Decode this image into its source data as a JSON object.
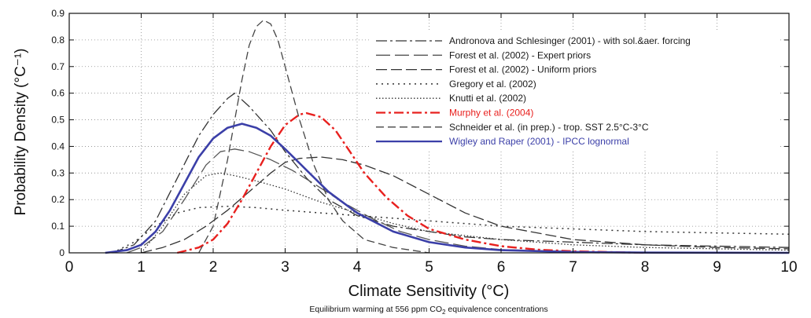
{
  "chart_data": {
    "type": "line",
    "xlabel": "Climate Sensitivity (°C)",
    "ylabel": "Probability Density (°C⁻¹)",
    "caption_main": "Equilibrium warming at 556 ppm CO",
    "caption_sub": "2",
    "caption_rest": " equivalence concentrations",
    "xlim": [
      0,
      10
    ],
    "ylim": [
      0,
      0.9
    ],
    "xticks": [
      "0",
      "1",
      "2",
      "3",
      "4",
      "5",
      "6",
      "7",
      "8",
      "9",
      "10"
    ],
    "yticks": [
      "0",
      "0.1",
      "0.2",
      "0.3",
      "0.4",
      "0.5",
      "0.6",
      "0.7",
      "0.8",
      "0.9"
    ],
    "grid": true,
    "legend_position": "top-right",
    "series": [
      {
        "name": "Andronova and Schlesinger (2001) - with sol.&aer. forcing",
        "color": "#333333",
        "dash": "14,4,3,4",
        "width": 1.3,
        "x": [
          0.6,
          0.9,
          1.2,
          1.5,
          1.8,
          2.0,
          2.2,
          2.3,
          2.5,
          2.8,
          3.0,
          3.3,
          3.6,
          4.0,
          4.5,
          5.0,
          5.5,
          6.0,
          7.0,
          8.0,
          9.0,
          10.0
        ],
        "y": [
          0.0,
          0.03,
          0.12,
          0.28,
          0.44,
          0.52,
          0.58,
          0.6,
          0.55,
          0.46,
          0.38,
          0.28,
          0.2,
          0.14,
          0.1,
          0.08,
          0.06,
          0.05,
          0.04,
          0.03,
          0.025,
          0.02
        ]
      },
      {
        "name": "Forest et al. (2002) - Expert priors",
        "color": "#555555",
        "dash": "18,6",
        "width": 1.3,
        "x": [
          0.8,
          1.0,
          1.3,
          1.6,
          1.9,
          2.1,
          2.3,
          2.5,
          2.8,
          3.1,
          3.4,
          3.8,
          4.2,
          4.6,
          5.0,
          5.5,
          6.0,
          7.0,
          8.0,
          10.0
        ],
        "y": [
          0.0,
          0.02,
          0.08,
          0.2,
          0.33,
          0.38,
          0.39,
          0.38,
          0.35,
          0.31,
          0.26,
          0.19,
          0.13,
          0.08,
          0.05,
          0.025,
          0.012,
          0.005,
          0.002,
          0.0
        ]
      },
      {
        "name": "Forest et al. (2002) - Uniform priors",
        "color": "#333333",
        "dash": "14,5",
        "width": 1.3,
        "x": [
          1.0,
          1.3,
          1.6,
          1.9,
          2.2,
          2.5,
          2.8,
          3.0,
          3.2,
          3.5,
          3.8,
          4.1,
          4.5,
          5.0,
          5.5,
          6.0,
          7.0,
          8.0,
          9.0,
          10.0
        ],
        "y": [
          0.0,
          0.02,
          0.05,
          0.1,
          0.16,
          0.23,
          0.3,
          0.34,
          0.355,
          0.36,
          0.35,
          0.33,
          0.29,
          0.22,
          0.15,
          0.1,
          0.05,
          0.03,
          0.02,
          0.015
        ]
      },
      {
        "name": "Gregory et al. (2002)",
        "color": "#333333",
        "dash": "2,5",
        "width": 1.5,
        "x": [
          0.6,
          0.9,
          1.2,
          1.5,
          1.8,
          2.2,
          2.6,
          3.0,
          3.5,
          4.0,
          4.5,
          5.0,
          6.0,
          7.0,
          8.0,
          9.0,
          10.0
        ],
        "y": [
          0.0,
          0.04,
          0.1,
          0.15,
          0.17,
          0.175,
          0.17,
          0.16,
          0.15,
          0.14,
          0.13,
          0.12,
          0.1,
          0.09,
          0.08,
          0.075,
          0.07
        ]
      },
      {
        "name": "Knutti et al. (2002)",
        "color": "#333333",
        "dash": "1.5,2.5",
        "width": 1.3,
        "x": [
          1.0,
          1.3,
          1.6,
          1.9,
          2.1,
          2.3,
          2.6,
          3.0,
          3.5,
          4.0,
          4.5,
          5.0,
          6.0,
          7.0,
          8.0,
          9.0,
          10.0
        ],
        "y": [
          0.0,
          0.1,
          0.22,
          0.29,
          0.3,
          0.29,
          0.27,
          0.24,
          0.19,
          0.15,
          0.11,
          0.08,
          0.05,
          0.03,
          0.02,
          0.015,
          0.01
        ]
      },
      {
        "name": "Murphy et al. (2004)",
        "color": "#e8201e",
        "dash": "12,4,3,4",
        "width": 2.4,
        "x": [
          1.5,
          1.8,
          2.0,
          2.2,
          2.4,
          2.6,
          2.8,
          3.0,
          3.2,
          3.3,
          3.5,
          3.7,
          3.9,
          4.1,
          4.4,
          4.7,
          5.0,
          5.5,
          6.0,
          6.5,
          7.0,
          7.5,
          8.0
        ],
        "y": [
          0.0,
          0.02,
          0.05,
          0.11,
          0.2,
          0.3,
          0.4,
          0.48,
          0.52,
          0.525,
          0.51,
          0.46,
          0.38,
          0.3,
          0.21,
          0.14,
          0.09,
          0.05,
          0.025,
          0.012,
          0.006,
          0.003,
          0.0
        ]
      },
      {
        "name": "Schneider et al. (in prep.) - trop. SST 2.5°C-3°C",
        "color": "#444444",
        "dash": "10,5",
        "width": 1.3,
        "x": [
          1.8,
          2.0,
          2.2,
          2.4,
          2.5,
          2.6,
          2.7,
          2.8,
          2.9,
          3.0,
          3.2,
          3.4,
          3.6,
          3.8,
          4.1,
          4.5,
          5.0
        ],
        "y": [
          0.0,
          0.1,
          0.35,
          0.65,
          0.78,
          0.85,
          0.875,
          0.86,
          0.8,
          0.7,
          0.5,
          0.33,
          0.2,
          0.12,
          0.05,
          0.02,
          0.0
        ]
      },
      {
        "name": "Wigley and Raper (2001) - IPCC lognormal",
        "color": "#3b3fa8",
        "dash": "",
        "width": 2.6,
        "x": [
          0.5,
          0.8,
          1.0,
          1.2,
          1.4,
          1.6,
          1.8,
          2.0,
          2.2,
          2.4,
          2.6,
          2.8,
          3.0,
          3.3,
          3.6,
          4.0,
          4.5,
          5.0,
          5.5,
          6.0,
          7.0,
          8.0,
          10.0
        ],
        "y": [
          0.0,
          0.01,
          0.03,
          0.08,
          0.16,
          0.26,
          0.36,
          0.43,
          0.47,
          0.485,
          0.47,
          0.44,
          0.39,
          0.31,
          0.23,
          0.15,
          0.08,
          0.04,
          0.02,
          0.01,
          0.003,
          0.001,
          0.0
        ]
      }
    ]
  }
}
